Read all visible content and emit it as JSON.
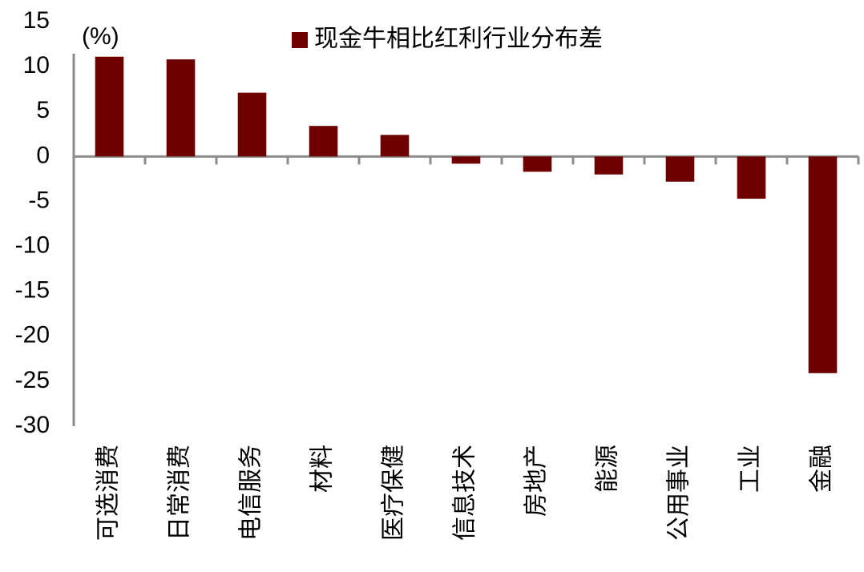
{
  "chart_data": {
    "type": "bar",
    "unit_label": "(%)",
    "legend_label": "现金牛相比红利行业分布差",
    "categories": [
      "可选消费",
      "日常消费",
      "电信服务",
      "材料",
      "医疗保健",
      "信息技术",
      "房地产",
      "能源",
      "公用事业",
      "工业",
      "金融"
    ],
    "values": [
      11.1,
      10.8,
      7.1,
      3.4,
      2.4,
      -0.8,
      -1.7,
      -2.0,
      -2.8,
      -4.7,
      -24.1
    ],
    "color": "#6e0000",
    "ylim": [
      -30,
      15
    ],
    "yticks": [
      -30,
      -25,
      -20,
      -15,
      -10,
      -5,
      0,
      5,
      10,
      15
    ],
    "grid": false
  }
}
